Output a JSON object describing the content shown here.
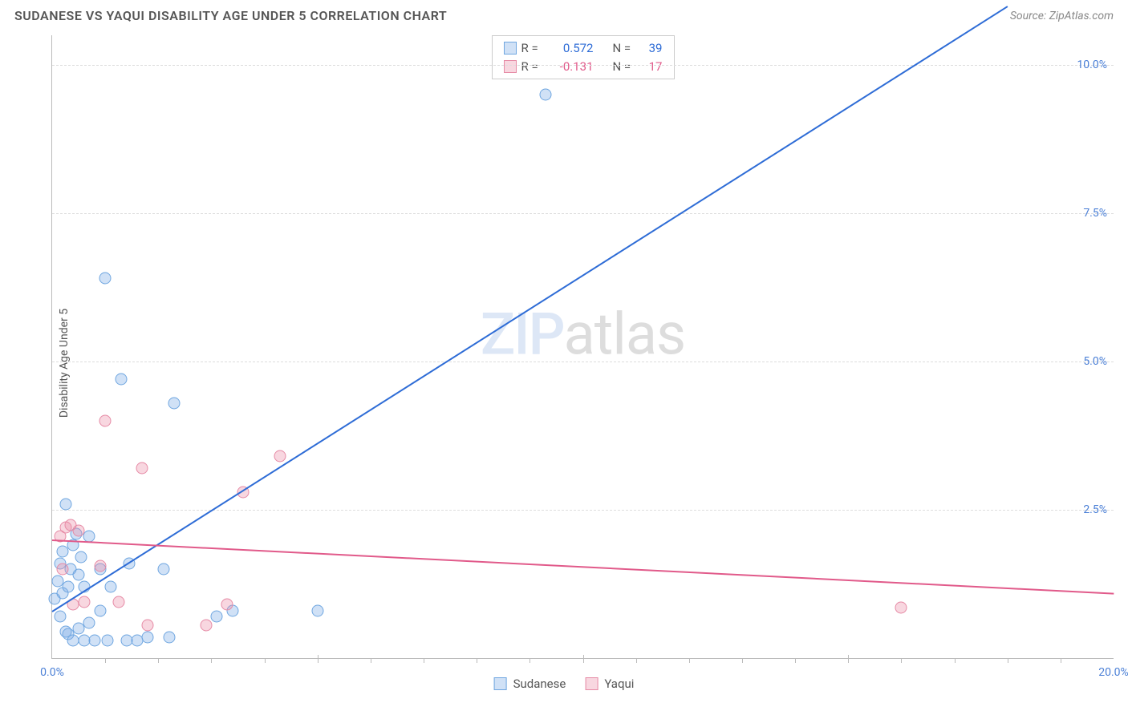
{
  "title": "SUDANESE VS YAQUI DISABILITY AGE UNDER 5 CORRELATION CHART",
  "source": "Source: ZipAtlas.com",
  "ylabel": "Disability Age Under 5",
  "watermark_zip": "ZIP",
  "watermark_atlas": "atlas",
  "chart": {
    "xlim": [
      0,
      20
    ],
    "ylim": [
      0,
      10.5
    ],
    "x_ticks_major": [
      0,
      5,
      10,
      15,
      20
    ],
    "x_labels": [
      {
        "v": 0,
        "t": "0.0%"
      },
      {
        "v": 20,
        "t": "20.0%"
      }
    ],
    "y_gridlines": [
      2.5,
      5.0,
      7.5,
      10.0
    ],
    "y_labels": [
      {
        "v": 2.5,
        "t": "2.5%"
      },
      {
        "v": 5.0,
        "t": "5.0%"
      },
      {
        "v": 7.5,
        "t": "7.5%"
      },
      {
        "v": 10.0,
        "t": "10.0%"
      }
    ],
    "grid_color": "#dddddd",
    "axis_color": "#bbbbbb"
  },
  "series": {
    "sudanese": {
      "label": "Sudanese",
      "fill": "rgba(120,170,230,0.35)",
      "stroke": "#6fa6e0",
      "trend_color": "#2e6cd6",
      "R": "0.572",
      "N": "39",
      "rcolor": "#2e6cd6",
      "trend": {
        "x1": 0,
        "y1": 0.8,
        "x2": 18,
        "y2": 11.0
      },
      "points": [
        [
          0.05,
          1.0
        ],
        [
          0.1,
          1.3
        ],
        [
          0.15,
          0.7
        ],
        [
          0.15,
          1.6
        ],
        [
          0.2,
          1.1
        ],
        [
          0.2,
          1.8
        ],
        [
          0.25,
          2.6
        ],
        [
          0.3,
          0.4
        ],
        [
          0.3,
          1.2
        ],
        [
          0.35,
          1.5
        ],
        [
          0.4,
          0.3
        ],
        [
          0.4,
          1.9
        ],
        [
          0.45,
          2.1
        ],
        [
          0.5,
          0.5
        ],
        [
          0.5,
          1.4
        ],
        [
          0.55,
          1.7
        ],
        [
          0.6,
          0.3
        ],
        [
          0.6,
          1.2
        ],
        [
          0.7,
          0.6
        ],
        [
          0.7,
          2.05
        ],
        [
          0.8,
          0.3
        ],
        [
          0.9,
          0.8
        ],
        [
          0.9,
          1.5
        ],
        [
          1.0,
          6.4
        ],
        [
          1.05,
          0.3
        ],
        [
          1.1,
          1.2
        ],
        [
          1.3,
          4.7
        ],
        [
          1.4,
          0.3
        ],
        [
          1.45,
          1.6
        ],
        [
          1.6,
          0.3
        ],
        [
          1.8,
          0.35
        ],
        [
          2.1,
          1.5
        ],
        [
          2.2,
          0.35
        ],
        [
          2.3,
          4.3
        ],
        [
          3.1,
          0.7
        ],
        [
          3.4,
          0.8
        ],
        [
          5.0,
          0.8
        ],
        [
          9.3,
          9.5
        ],
        [
          0.25,
          0.45
        ]
      ]
    },
    "yaqui": {
      "label": "Yaqui",
      "fill": "rgba(235,140,165,0.35)",
      "stroke": "#e68aa5",
      "trend_color": "#e15a8a",
      "R": "-0.131",
      "N": "17",
      "rcolor": "#e15a8a",
      "trend": {
        "x1": 0,
        "y1": 2.0,
        "x2": 20,
        "y2": 1.1
      },
      "points": [
        [
          0.15,
          2.05
        ],
        [
          0.2,
          1.5
        ],
        [
          0.25,
          2.2
        ],
        [
          0.35,
          2.25
        ],
        [
          0.4,
          0.9
        ],
        [
          0.5,
          2.15
        ],
        [
          0.6,
          0.95
        ],
        [
          0.9,
          1.55
        ],
        [
          1.0,
          4.0
        ],
        [
          1.25,
          0.95
        ],
        [
          1.7,
          3.2
        ],
        [
          1.8,
          0.55
        ],
        [
          2.9,
          0.55
        ],
        [
          3.3,
          0.9
        ],
        [
          3.6,
          2.8
        ],
        [
          4.3,
          3.4
        ],
        [
          16.0,
          0.85
        ]
      ]
    }
  }
}
